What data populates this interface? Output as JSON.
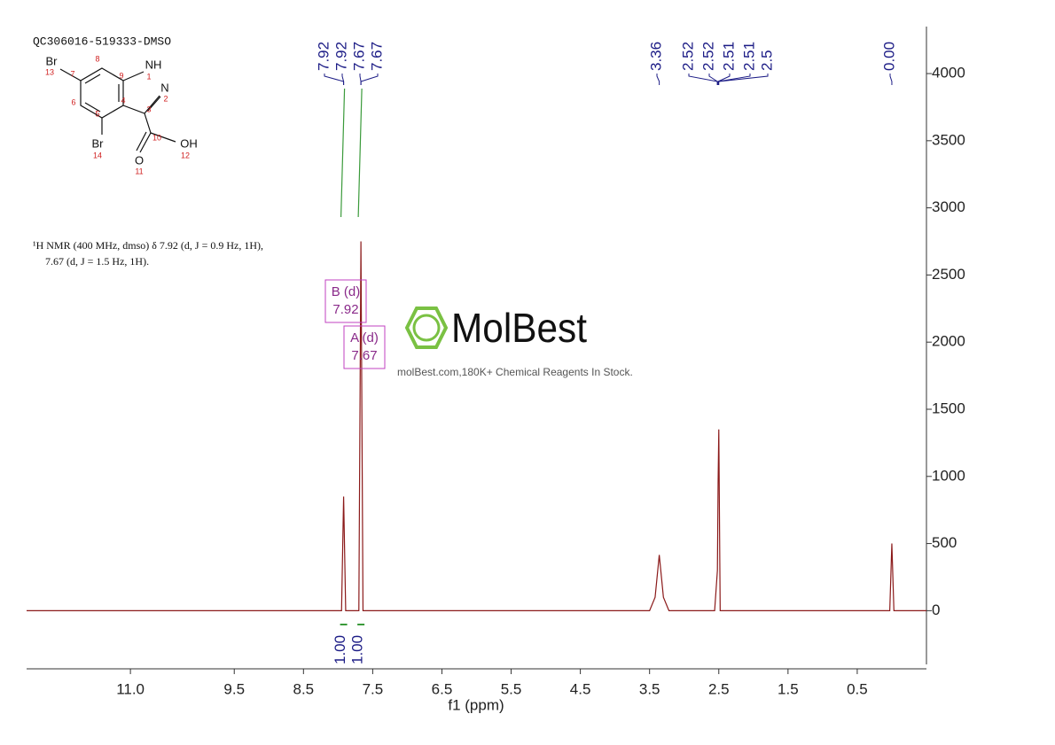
{
  "chart_data": {
    "type": "line",
    "title": "QC306016-519333-DMSO",
    "description": [
      "¹H NMR (400 MHz, dmso) δ 7.92 (d, J = 0.9 Hz, 1H),",
      "7.67 (d, J = 1.5 Hz, 1H)."
    ],
    "x_label": "f1 (ppm)",
    "xlim": [
      12.5,
      -0.5
    ],
    "xticks": [
      {
        "value": 11,
        "label": "11.0"
      },
      9.5,
      8.5,
      7.5,
      6.5,
      5.5,
      4.5,
      3.5,
      2.5,
      1.5,
      0.5
    ],
    "ylim": [
      -400,
      4350
    ],
    "yticks": [
      0,
      500,
      1000,
      1500,
      2000,
      2500,
      3000,
      3500,
      4000
    ],
    "series": [
      {
        "color": "#8b1a1a",
        "x": [
          12.5,
          7.95,
          7.92,
          7.89,
          7.7,
          7.67,
          7.64,
          3.5,
          3.42,
          3.36,
          3.3,
          3.22,
          2.56,
          2.52,
          2.51,
          2.5,
          2.48,
          0.03,
          0.0,
          -0.03,
          -0.5
        ],
        "values": [
          0,
          0,
          850,
          0,
          0,
          2750,
          0,
          0,
          100,
          415,
          100,
          0,
          0,
          300,
          950,
          1350,
          0,
          0,
          500,
          0,
          0
        ]
      }
    ],
    "peak_labels": [
      7.92,
      7.92,
      7.67,
      7.67,
      3.36,
      2.52,
      2.52,
      2.51,
      2.51,
      2.5,
      {
        "value": 0,
        "label": "0.00"
      }
    ],
    "integrals": [
      {
        "ppm": 7.92,
        "value": 1,
        "label": "1.00"
      },
      {
        "ppm": 7.67,
        "value": 1,
        "label": "1.00"
      }
    ],
    "multiplets": [
      {
        "name": "B (d)",
        "shift": "7.92"
      },
      {
        "name": "A (d)",
        "shift": "7.67"
      }
    ],
    "watermark": {
      "brand": "MolBest",
      "tagline": "molBest.com,180K+ Chemical Reagents In Stock."
    },
    "molecule": {
      "atoms": [
        {
          "symbol": "Br",
          "number": "13"
        },
        {
          "symbol": "NH",
          "number": "1"
        },
        {
          "symbol": "N",
          "number": "2"
        },
        {
          "symbol": "Br",
          "number": "14"
        },
        {
          "symbol": "OH",
          "number": "12"
        },
        {
          "symbol": "O",
          "number": "11"
        }
      ],
      "carbon_numbers": [
        "8",
        "9",
        "7",
        "3",
        "6",
        "4",
        "5",
        "10"
      ]
    }
  }
}
